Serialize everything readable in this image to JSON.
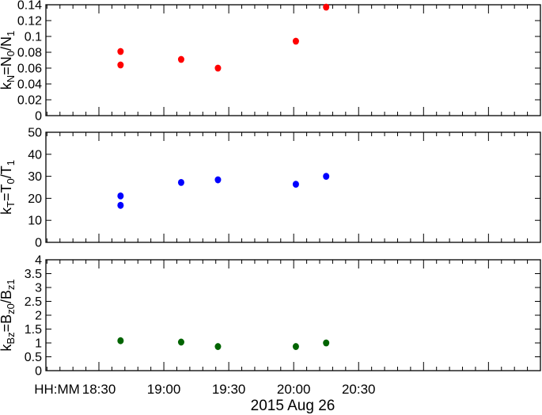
{
  "chart_data": [
    {
      "type": "scatter",
      "ylabel": {
        "base": "k",
        "sub": "N",
        "rest": "=N",
        "sub2": "0",
        "rest2": "/N",
        "sub3": "1"
      },
      "ylim": [
        0,
        0.14
      ],
      "yticks": [
        "0",
        "0.02",
        "0.04",
        "0.06",
        "0.08",
        "0.1",
        "0.12",
        "0.14"
      ],
      "ytick_values": [
        0,
        0.02,
        0.04,
        0.06,
        0.08,
        0.1,
        0.12,
        0.14
      ],
      "color": "#ff0000",
      "points": [
        {
          "x": "18:40",
          "y": 0.081
        },
        {
          "x": "18:40",
          "y": 0.064
        },
        {
          "x": "19:08",
          "y": 0.071
        },
        {
          "x": "19:25",
          "y": 0.06
        },
        {
          "x": "20:01",
          "y": 0.094
        },
        {
          "x": "20:15",
          "y": 0.137
        }
      ]
    },
    {
      "type": "scatter",
      "ylabel": {
        "base": "k",
        "sub": "T",
        "rest": "=T",
        "sub2": "0",
        "rest2": "/T",
        "sub3": "1"
      },
      "ylim": [
        0,
        50
      ],
      "yticks": [
        "0",
        "10",
        "20",
        "30",
        "40",
        "50"
      ],
      "ytick_values": [
        0,
        10,
        20,
        30,
        40,
        50
      ],
      "color": "#0000ff",
      "points": [
        {
          "x": "18:40",
          "y": 21.1
        },
        {
          "x": "18:40",
          "y": 16.8
        },
        {
          "x": "19:08",
          "y": 27.2
        },
        {
          "x": "19:25",
          "y": 28.4
        },
        {
          "x": "20:01",
          "y": 26.4
        },
        {
          "x": "20:15",
          "y": 30.0
        }
      ]
    },
    {
      "type": "scatter",
      "ylabel": {
        "base": "k",
        "sub": "Bz",
        "rest": "=B",
        "sub2": "z0",
        "rest2": "/B",
        "sub3": "z1"
      },
      "ylim": [
        0,
        4
      ],
      "yticks": [
        "0",
        "0.5",
        "1",
        "1.5",
        "2",
        "2.5",
        "3",
        "3.5",
        "4"
      ],
      "ytick_values": [
        0,
        0.5,
        1,
        1.5,
        2,
        2.5,
        3,
        3.5,
        4
      ],
      "color": "#006400",
      "points": [
        {
          "x": "18:40",
          "y": 1.08
        },
        {
          "x": "19:08",
          "y": 1.03
        },
        {
          "x": "19:25",
          "y": 0.87
        },
        {
          "x": "20:01",
          "y": 0.87
        },
        {
          "x": "20:15",
          "y": 1.0
        }
      ]
    }
  ],
  "xaxis": {
    "label_prefix": "HH:MM",
    "ticks": [
      "18:30",
      "19:00",
      "19:30",
      "20:00",
      "20:30"
    ],
    "xlim": [
      "18:05.5",
      "21:54"
    ],
    "xlabel": "2015 Aug 26"
  }
}
